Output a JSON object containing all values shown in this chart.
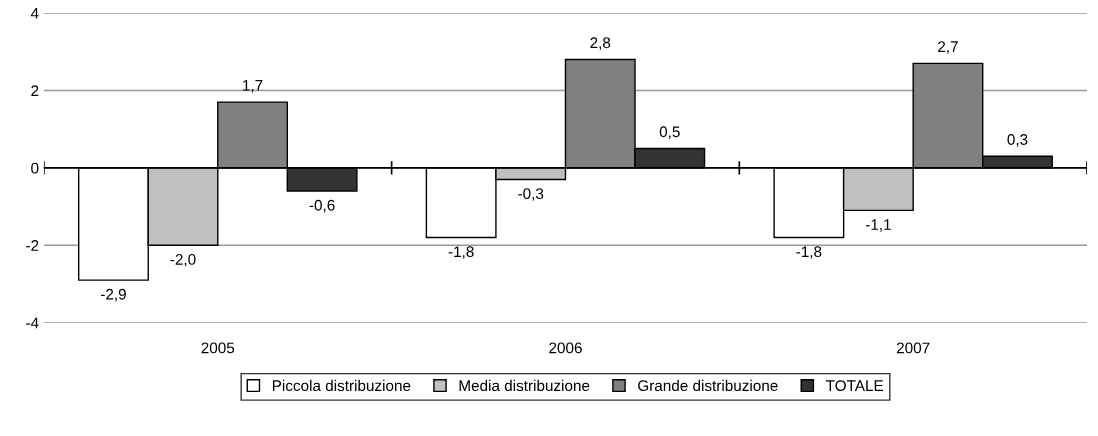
{
  "chart_data": {
    "type": "bar",
    "categories": [
      "2005",
      "2006",
      "2007"
    ],
    "series": [
      {
        "name": "Piccola distribuzione",
        "color": "#ffffff",
        "values": [
          -2.9,
          -1.8,
          -1.8
        ],
        "value_labels": [
          "-2,9",
          "-1,8",
          "-1,8"
        ]
      },
      {
        "name": "Media distribuzione",
        "color": "#c0c0c0",
        "values": [
          -2.0,
          -0.3,
          -1.1
        ],
        "value_labels": [
          "-2,0",
          "-0,3",
          "-1,1"
        ]
      },
      {
        "name": "Grande distribuzione",
        "color": "#808080",
        "values": [
          1.7,
          2.8,
          2.7
        ],
        "value_labels": [
          "1,7",
          "2,8",
          "2,7"
        ]
      },
      {
        "name": "TOTALE",
        "color": "#333333",
        "values": [
          -0.6,
          0.5,
          0.3
        ],
        "value_labels": [
          "-0,6",
          "0,5",
          "0,3"
        ]
      }
    ],
    "ylim": [
      -4,
      4
    ],
    "yticks": [
      -4,
      -2,
      0,
      2,
      4
    ],
    "grid": "y",
    "legend": "bottom"
  }
}
